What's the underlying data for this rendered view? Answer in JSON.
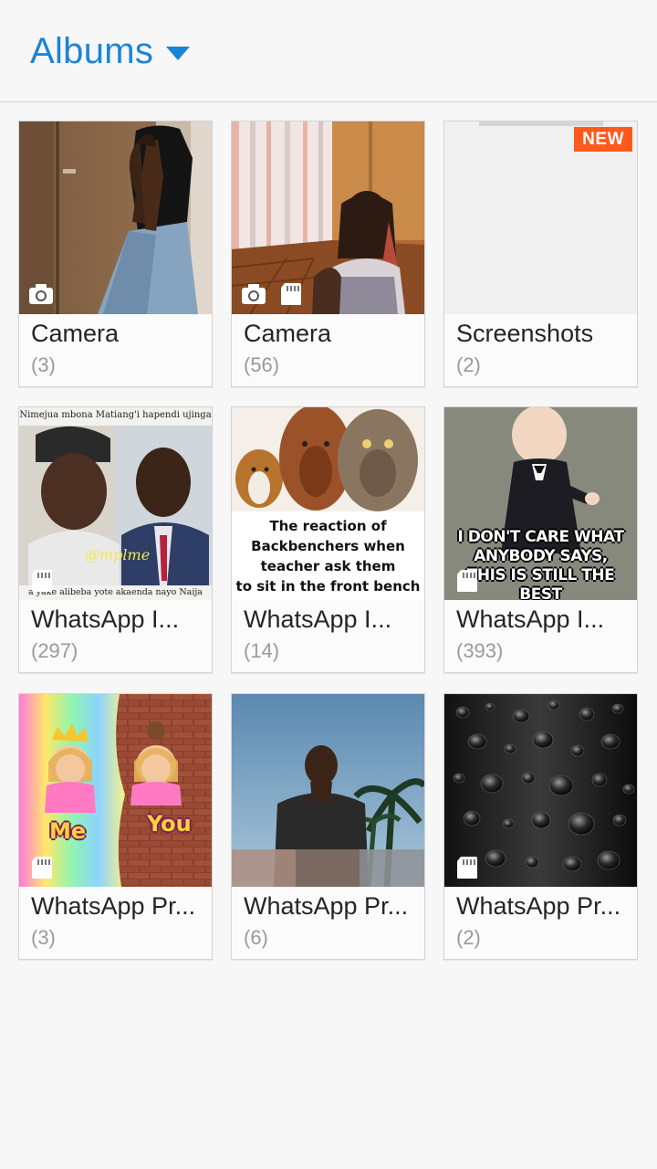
{
  "header": {
    "title": "Albums"
  },
  "albums": [
    {
      "name": "Camera",
      "count": "(3)",
      "icons": [
        "camera-icon"
      ]
    },
    {
      "name": "Camera",
      "count": "(56)",
      "icons": [
        "camera-icon",
        "sd-card-icon"
      ]
    },
    {
      "name": "Screenshots",
      "count": "(2)",
      "badge": "NEW"
    },
    {
      "name": "WhatsApp I...",
      "count": "(297)",
      "icons": [
        "sd-card-icon"
      ],
      "meme_top": "Nimejua mbona Matiang'i hapendi ujinga",
      "meme_bottom": "a yake alibeba yote akaenda nayo Naija",
      "watermark": "@mplme"
    },
    {
      "name": "WhatsApp I...",
      "count": "(14)",
      "caption": "The reaction of\nBackbenchers when\nteacher ask them\nto sit in the front bench"
    },
    {
      "name": "WhatsApp I...",
      "count": "(393)",
      "icons": [
        "sd-card-icon"
      ],
      "caption": "I DON'T CARE WHAT\nANYBODY SAYS,\nTHIS IS STILL THE BEST\nGROUP"
    },
    {
      "name": "WhatsApp Pr...",
      "count": "(3)",
      "icons": [
        "sd-card-icon"
      ],
      "label_left": "Me",
      "label_right": "You"
    },
    {
      "name": "WhatsApp Pr...",
      "count": "(6)"
    },
    {
      "name": "WhatsApp Pr...",
      "count": "(2)",
      "icons": [
        "sd-card-icon"
      ]
    }
  ],
  "colors": {
    "accent": "#1a85d6",
    "badge": "#ff5a1c",
    "count_text": "#9a9a9a"
  }
}
